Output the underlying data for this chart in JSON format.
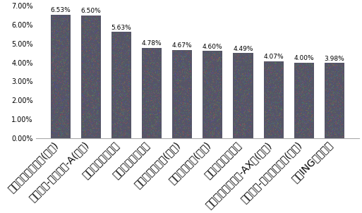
{
  "categories": [
    "匯豐印度股票基金(美元)",
    "富蘭克林-印度基金-A(美元)",
    "富達印度聤焦基金",
    "元大寶來印度基金",
    "貝萊德印度基金(歐元)",
    "瘀亞印度基金(台幣)",
    "群益印度中小基金",
    "聯博印度成長基金-AX股(美元)",
    "瘀亞投資-印度股票基金(美元)",
    "安泰ING印度潛力"
  ],
  "values": [
    6.53,
    6.5,
    5.63,
    4.78,
    4.67,
    4.6,
    4.49,
    4.07,
    4.0,
    3.98
  ],
  "bar_color": "#555566",
  "ylim": [
    0,
    7.0
  ],
  "yticks": [
    0.0,
    1.0,
    2.0,
    3.0,
    4.0,
    5.0,
    6.0,
    7.0
  ],
  "value_labels": [
    "6.53%",
    "6.50%",
    "5.63%",
    "4.78%",
    "4.67%",
    "4.60%",
    "4.49%",
    "4.07%",
    "4.00%",
    "3.98%"
  ],
  "background_color": "#ffffff",
  "label_fontsize": 6.0,
  "value_fontsize": 6.5
}
